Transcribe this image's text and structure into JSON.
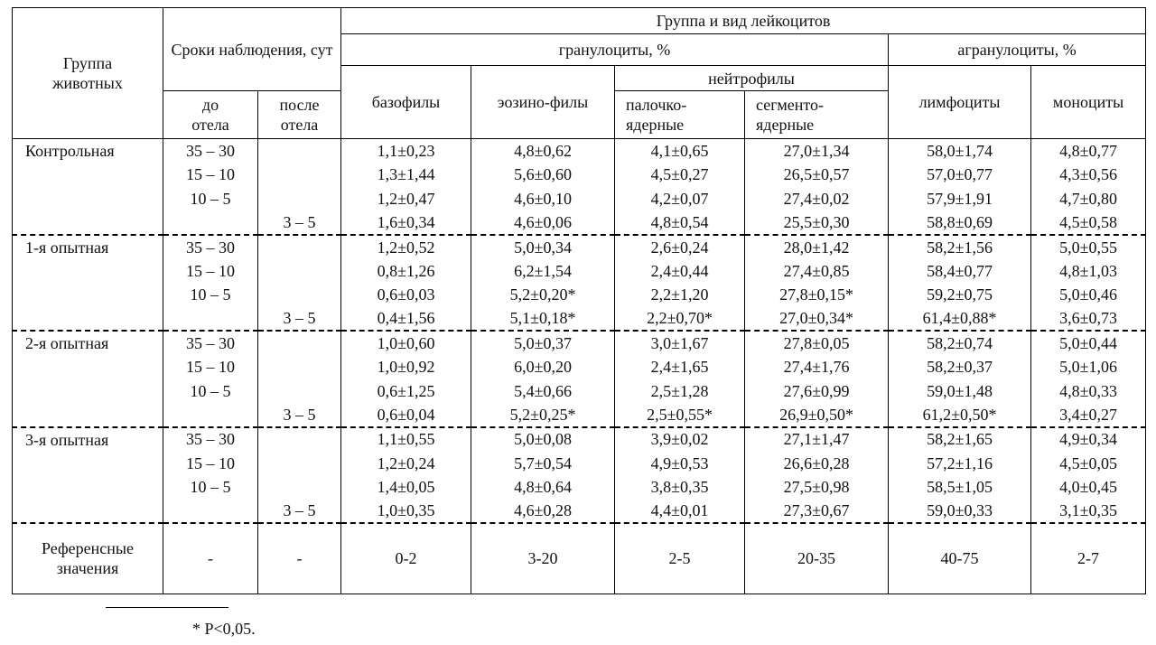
{
  "header": {
    "group": "Группа животных",
    "terms": "Сроки наблюдения, сут",
    "before": "до отела",
    "after": "после отела",
    "leukocytes": "Группа и вид лейкоцитов",
    "granulocytes": "гранулоциты, %",
    "agranulocytes": "агранулоциты, %",
    "neutrophils": "нейтрофилы",
    "basophils": "базофилы",
    "eosinophils": "эозино-филы",
    "band": "палочко-ядерные",
    "segmented": "сегменто-ядерные",
    "lymphocytes": "лимфоциты",
    "monocytes": "моноциты"
  },
  "groups": [
    {
      "name": "Контрольная",
      "rows": [
        {
          "before": "35 – 30",
          "values": [
            "1,1±0,23",
            "4,8±0,62",
            "4,1±0,65",
            "27,0±1,34",
            "58,0±1,74",
            "4,8±0,77"
          ]
        },
        {
          "before": "15 – 10",
          "values": [
            "1,3±1,44",
            "5,6±0,60",
            "4,5±0,27",
            "26,5±0,57",
            "57,0±0,77",
            "4,3±0,56"
          ]
        },
        {
          "before": "10 – 5",
          "values": [
            "1,2±0,47",
            "4,6±0,10",
            "4,2±0,07",
            "27,4±0,02",
            "57,9±1,91",
            "4,7±0,80"
          ]
        },
        {
          "after": "3 – 5",
          "values": [
            "1,6±0,34",
            "4,6±0,06",
            "4,8±0,54",
            "25,5±0,30",
            "58,8±0,69",
            "4,5±0,58"
          ]
        }
      ]
    },
    {
      "name": "1-я опытная",
      "rows": [
        {
          "before": "35 – 30",
          "values": [
            "1,2±0,52",
            "5,0±0,34",
            "2,6±0,24",
            "28,0±1,42",
            "58,2±1,56",
            "5,0±0,55"
          ]
        },
        {
          "before": "15 – 10",
          "values": [
            "0,8±1,26",
            "6,2±1,54",
            "2,4±0,44",
            "27,4±0,85",
            "58,4±0,77",
            "4,8±1,03"
          ]
        },
        {
          "before": "10 – 5",
          "values": [
            "0,6±0,03",
            "5,2±0,20*",
            "2,2±1,20",
            "27,8±0,15*",
            "59,2±0,75",
            "5,0±0,46"
          ]
        },
        {
          "after": "3 – 5",
          "values": [
            "0,4±1,56",
            "5,1±0,18*",
            "2,2±0,70*",
            "27,0±0,34*",
            "61,4±0,88*",
            "3,6±0,73"
          ]
        }
      ]
    },
    {
      "name": "2-я опытная",
      "rows": [
        {
          "before": "35 – 30",
          "values": [
            "1,0±0,60",
            "5,0±0,37",
            "3,0±1,67",
            "27,8±0,05",
            "58,2±0,74",
            "5,0±0,44"
          ]
        },
        {
          "before": "15 – 10",
          "values": [
            "1,0±0,92",
            "6,0±0,20",
            "2,4±1,65",
            "27,4±1,76",
            "58,2±0,37",
            "5,0±1,06"
          ]
        },
        {
          "before": "10 – 5",
          "values": [
            "0,6±1,25",
            "5,4±0,66",
            "2,5±1,28",
            "27,6±0,99",
            "59,0±1,48",
            "4,8±0,33"
          ]
        },
        {
          "after": "3 – 5",
          "values": [
            "0,6±0,04",
            "5,2±0,25*",
            "2,5±0,55*",
            "26,9±0,50*",
            "61,2±0,50*",
            "3,4±0,27"
          ]
        }
      ]
    },
    {
      "name": "3-я опытная",
      "rows": [
        {
          "before": "35 – 30",
          "values": [
            "1,1±0,55",
            "5,0±0,08",
            "3,9±0,02",
            "27,1±1,47",
            "58,2±1,65",
            "4,9±0,34"
          ]
        },
        {
          "before": "15 – 10",
          "values": [
            "1,2±0,24",
            "5,7±0,54",
            "4,9±0,53",
            "26,6±0,28",
            "57,2±1,16",
            "4,5±0,05"
          ]
        },
        {
          "before": "10 – 5",
          "values": [
            "1,4±0,05",
            "4,8±0,64",
            "3,8±0,35",
            "27,5±0,98",
            "58,5±1,05",
            "4,0±0,45"
          ]
        },
        {
          "after": "3 – 5",
          "values": [
            "1,0±0,35",
            "4,6±0,28",
            "4,4±0,01",
            "27,3±0,67",
            "59,0±0,33",
            "3,1±0,35"
          ]
        }
      ]
    }
  ],
  "reference": {
    "label": "Референсные значения",
    "cells": [
      "-",
      "-",
      "0-2",
      "3-20",
      "2-5",
      "20-35",
      "40-75",
      "2-7"
    ]
  },
  "footnote": "* P<0,05."
}
